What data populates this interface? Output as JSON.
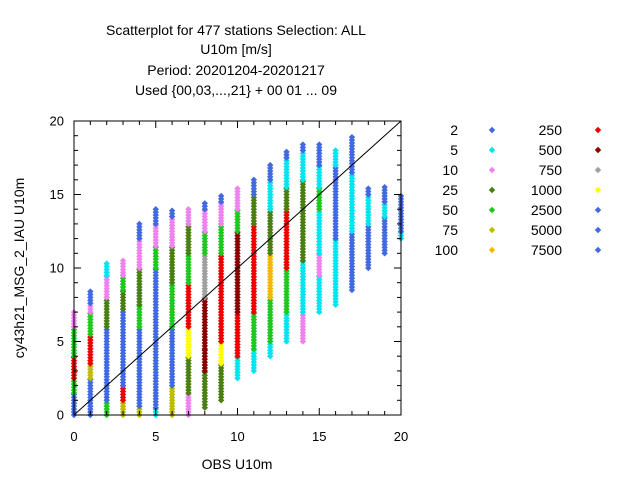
{
  "chart_data": {
    "type": "scatter",
    "title_lines": [
      "Scatterplot for  477 stations Selection: ALL",
      "U10m [m/s]",
      "Period: 20201204-20201217",
      "Used {00,03,...,21} + 00 01 ... 09"
    ],
    "xlabel": "OBS U10m",
    "ylabel": "cy43h21_MSG_2_IAU U10m",
    "xlim": [
      0,
      20
    ],
    "ylim": [
      0,
      20
    ],
    "xticks": [
      "0",
      "5",
      "10",
      "15",
      "20"
    ],
    "yticks": [
      "0",
      "5",
      "10",
      "15",
      "20"
    ],
    "diagonal": true,
    "grid": false,
    "legend_position": "right",
    "legend": [
      {
        "label": "2",
        "color": "#4169e1"
      },
      {
        "label": "5",
        "color": "#00e5ee"
      },
      {
        "label": "10",
        "color": "#ee82ee"
      },
      {
        "label": "25",
        "color": "#4a7f14"
      },
      {
        "label": "50",
        "color": "#1ec81e"
      },
      {
        "label": "75",
        "color": "#bdbd00"
      },
      {
        "label": "100",
        "color": "#f5b800"
      },
      {
        "label": "250",
        "color": "#ee0000"
      },
      {
        "label": "500",
        "color": "#8b0000"
      },
      {
        "label": "750",
        "color": "#a0a0a0"
      },
      {
        "label": "1000",
        "color": "#ffff00"
      },
      {
        "label": "2500",
        "color": "#4169e1"
      },
      {
        "label": "5000",
        "color": "#4169e1"
      },
      {
        "label": "7500",
        "color": "#4169e1"
      }
    ],
    "columns": [
      {
        "x": 0,
        "segments": [
          [
            0,
            1.5,
            "#4169e1"
          ],
          [
            1.5,
            2.5,
            "#1ec81e"
          ],
          [
            2.5,
            4,
            "#ee0000"
          ],
          [
            4,
            6,
            "#1ec81e"
          ],
          [
            6,
            7,
            "#ee82ee"
          ]
        ]
      },
      {
        "x": 1,
        "segments": [
          [
            0,
            2.5,
            "#4169e1"
          ],
          [
            2.5,
            3.5,
            "#bdbd00"
          ],
          [
            3.5,
            5.5,
            "#ee0000"
          ],
          [
            5.5,
            7,
            "#1ec81e"
          ],
          [
            7,
            7.6,
            "#ee82ee"
          ],
          [
            7.6,
            8.5,
            "#4169e1"
          ]
        ]
      },
      {
        "x": 2,
        "segments": [
          [
            0,
            1,
            "#1ec81e"
          ],
          [
            1,
            6,
            "#4169e1"
          ],
          [
            6,
            8,
            "#4a7f14"
          ],
          [
            8,
            9.5,
            "#ee82ee"
          ],
          [
            9.5,
            10.3,
            "#00e5ee"
          ]
        ]
      },
      {
        "x": 3,
        "segments": [
          [
            0,
            1,
            "#bdbd00"
          ],
          [
            1,
            2,
            "#ee0000"
          ],
          [
            2,
            7.2,
            "#4169e1"
          ],
          [
            7.2,
            8.5,
            "#4a7f14"
          ],
          [
            8.5,
            9.5,
            "#1ec81e"
          ],
          [
            9.5,
            10.5,
            "#ee82ee"
          ]
        ]
      },
      {
        "x": 4,
        "segments": [
          [
            0,
            0.6,
            "#bdbd00"
          ],
          [
            0.6,
            6,
            "#4169e1"
          ],
          [
            6,
            7.5,
            "#1ec81e"
          ],
          [
            7.5,
            10,
            "#4a7f14"
          ],
          [
            10,
            12,
            "#ee82ee"
          ],
          [
            12,
            13,
            "#4169e1"
          ]
        ]
      },
      {
        "x": 5,
        "segments": [
          [
            0,
            0.5,
            "#00e5ee"
          ],
          [
            0.5,
            10,
            "#4169e1"
          ],
          [
            10,
            11.5,
            "#1ec81e"
          ],
          [
            11.5,
            13,
            "#ee82ee"
          ],
          [
            13,
            14,
            "#4169e1"
          ]
        ]
      },
      {
        "x": 6,
        "segments": [
          [
            0,
            2,
            "#bdbd00"
          ],
          [
            2,
            6,
            "#4169e1"
          ],
          [
            6,
            9,
            "#1ec81e"
          ],
          [
            9,
            11.5,
            "#4a7f14"
          ],
          [
            11.5,
            13.5,
            "#ee82ee"
          ],
          [
            13.5,
            14,
            "#4169e1"
          ]
        ]
      },
      {
        "x": 7,
        "segments": [
          [
            0,
            1.5,
            "#ee82ee"
          ],
          [
            1.5,
            4,
            "#4a7f14"
          ],
          [
            4,
            6,
            "#ffff00"
          ],
          [
            6,
            9,
            "#ee0000"
          ],
          [
            9,
            11,
            "#1ec81e"
          ],
          [
            11,
            13,
            "#4a7f14"
          ],
          [
            13,
            14,
            "#ee82ee"
          ]
        ]
      },
      {
        "x": 8,
        "segments": [
          [
            0.5,
            3,
            "#4a7f14"
          ],
          [
            3,
            4.5,
            "#8b0000"
          ],
          [
            4.5,
            8,
            "#8b0000"
          ],
          [
            8,
            11,
            "#a0a0a0"
          ],
          [
            11,
            12.5,
            "#1ec81e"
          ],
          [
            12.5,
            14,
            "#ee82ee"
          ],
          [
            14,
            14.5,
            "#4169e1"
          ]
        ]
      },
      {
        "x": 9,
        "segments": [
          [
            1,
            3.5,
            "#4a7f14"
          ],
          [
            3.5,
            5,
            "#ffff00"
          ],
          [
            5,
            11,
            "#ee0000"
          ],
          [
            11,
            13,
            "#1ec81e"
          ],
          [
            13,
            14.5,
            "#ee82ee"
          ],
          [
            14.5,
            15,
            "#4169e1"
          ]
        ]
      },
      {
        "x": 10,
        "segments": [
          [
            2.5,
            4,
            "#00e5ee"
          ],
          [
            4,
            7,
            "#ee0000"
          ],
          [
            7,
            12.5,
            "#8b0000"
          ],
          [
            12.5,
            14,
            "#1ec81e"
          ],
          [
            14,
            15.5,
            "#ee82ee"
          ]
        ]
      },
      {
        "x": 11,
        "segments": [
          [
            3,
            4.5,
            "#00e5ee"
          ],
          [
            4.5,
            7,
            "#1ec81e"
          ],
          [
            7,
            13,
            "#ee0000"
          ],
          [
            13,
            15,
            "#4a7f14"
          ],
          [
            15,
            16,
            "#4169e1"
          ]
        ]
      },
      {
        "x": 12,
        "segments": [
          [
            4,
            5,
            "#00e5ee"
          ],
          [
            5,
            8,
            "#1ec81e"
          ],
          [
            8,
            11,
            "#f5b800"
          ],
          [
            11,
            14,
            "#4a7f14"
          ],
          [
            14,
            16,
            "#00e5ee"
          ],
          [
            16,
            17,
            "#4169e1"
          ]
        ]
      },
      {
        "x": 13,
        "segments": [
          [
            5,
            7,
            "#00e5ee"
          ],
          [
            7,
            10,
            "#1ec81e"
          ],
          [
            10,
            14,
            "#ee0000"
          ],
          [
            14,
            15.5,
            "#4a7f14"
          ],
          [
            15.5,
            17.5,
            "#00e5ee"
          ],
          [
            17.5,
            18,
            "#4169e1"
          ]
        ]
      },
      {
        "x": 14,
        "segments": [
          [
            5,
            7,
            "#ee82ee"
          ],
          [
            7,
            10.5,
            "#00e5ee"
          ],
          [
            10.5,
            16,
            "#4a7f14"
          ],
          [
            16,
            18,
            "#00e5ee"
          ],
          [
            18,
            18.5,
            "#4169e1"
          ]
        ]
      },
      {
        "x": 15,
        "segments": [
          [
            7,
            9.5,
            "#00e5ee"
          ],
          [
            9.5,
            11,
            "#ee82ee"
          ],
          [
            11,
            14,
            "#00e5ee"
          ],
          [
            14,
            15.5,
            "#1ec81e"
          ],
          [
            15.5,
            17,
            "#00e5ee"
          ],
          [
            17,
            18.5,
            "#4169e1"
          ]
        ]
      },
      {
        "x": 16,
        "segments": [
          [
            7.5,
            12,
            "#00e5ee"
          ],
          [
            12,
            17,
            "#4169e1"
          ],
          [
            17,
            18,
            "#00e5ee"
          ]
        ]
      },
      {
        "x": 17,
        "segments": [
          [
            8.5,
            12.5,
            "#4169e1"
          ],
          [
            12.5,
            16.5,
            "#00e5ee"
          ],
          [
            16.5,
            19,
            "#4169e1"
          ]
        ]
      },
      {
        "x": 18,
        "segments": [
          [
            10,
            13,
            "#4169e1"
          ],
          [
            13,
            15,
            "#00e5ee"
          ],
          [
            15,
            15.5,
            "#4169e1"
          ]
        ]
      },
      {
        "x": 19,
        "segments": [
          [
            11,
            13.5,
            "#4169e1"
          ],
          [
            13.5,
            14.5,
            "#00e5ee"
          ],
          [
            14.5,
            15.5,
            "#4169e1"
          ]
        ]
      },
      {
        "x": 20,
        "segments": [
          [
            12,
            12.5,
            "#00e5ee"
          ],
          [
            12.5,
            15,
            "#4169e1"
          ]
        ]
      }
    ]
  }
}
